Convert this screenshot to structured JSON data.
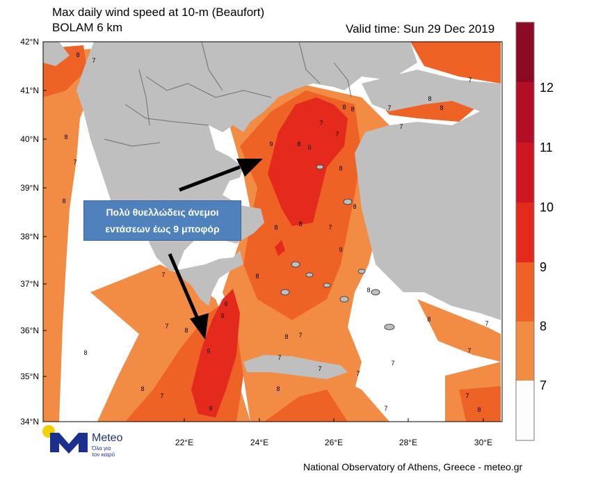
{
  "title_line1": "Max daily wind speed at 10-m (Beaufort)",
  "title_line2": "BOLAM 6 km",
  "valid_time": "Valid time: Sun 29 Dec 2019",
  "lat_labels": [
    "42°N",
    "41°N",
    "40°N",
    "39°N",
    "38°N",
    "37°N",
    "36°N",
    "35°N",
    "34°N"
  ],
  "lon_labels": [
    "22°E",
    "24°E",
    "26°E",
    "28°E",
    "30°E"
  ],
  "colorbar": {
    "labels": [
      "12",
      "11",
      "10",
      "9",
      "8",
      "7"
    ],
    "colors": [
      "#fdfdfd",
      "#f28c45",
      "#ef6226",
      "#e42a1d",
      "#cd1622",
      "#b30e26",
      "#8c0a24"
    ]
  },
  "callout_line1": "Πολύ θυελλώδεις άνεμοι",
  "callout_line2": "εντάσεων έως 9 μποφόρ",
  "logo_name": "Meteo",
  "logo_tagline_1": "Όλα για",
  "logo_tagline_2": "τον καιρό",
  "footer": "National Observatory of Athens, Greece - meteo.gr",
  "contour_labels": [
    "8",
    "7",
    "8",
    "8",
    "7",
    "8",
    "8",
    "7",
    "8",
    "9",
    "7",
    "9",
    "9",
    "8",
    "9",
    "7",
    "8",
    "8",
    "7",
    "8",
    "8",
    "7",
    "9",
    "8",
    "7",
    "7",
    "8",
    "8",
    "7",
    "8",
    "8",
    "9",
    "9",
    "7",
    "8",
    "7",
    "8",
    "7",
    "7",
    "7",
    "8",
    "7",
    "8",
    "7",
    "7",
    "7",
    "8",
    "7"
  ]
}
